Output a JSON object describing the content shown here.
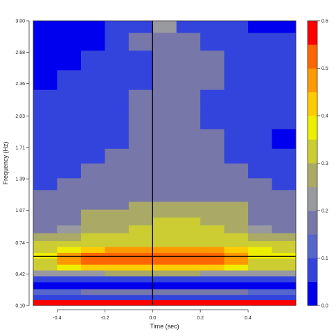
{
  "chart_data": {
    "type": "heatmap",
    "title": "",
    "xlabel": "Time (sec)",
    "ylabel": "Frequency (Hz)",
    "xlim": [
      -0.5,
      0.6
    ],
    "ylim": [
      0.1,
      3.0
    ],
    "x_ticks": [
      -0.4,
      -0.2,
      0.0,
      0.2,
      0.4
    ],
    "x_tick_labels": [
      "-0.4",
      "-0.2",
      "0.0",
      "0.2",
      "0.4"
    ],
    "y_ticks": [
      0.1,
      0.42,
      0.74,
      1.07,
      1.39,
      1.71,
      2.03,
      2.36,
      2.68,
      3.0
    ],
    "y_tick_labels": [
      "0.10",
      "0.42",
      "0.74",
      "1.07",
      "1.39",
      "1.71",
      "2.03",
      "2.36",
      "2.68",
      "3.00"
    ],
    "reference_lines": {
      "vertical_x": 0.0,
      "horizontal_y": 0.6
    },
    "colorbar": {
      "breaks": [
        0.0,
        0.05,
        0.1,
        0.15,
        0.2,
        0.25,
        0.3,
        0.35,
        0.4,
        0.45,
        0.5,
        0.55,
        0.6
      ],
      "colors": [
        "#0000ee",
        "#3344dd",
        "#5566cc",
        "#7777aa",
        "#9999a0",
        "#aaaa66",
        "#cccc33",
        "#eeee00",
        "#ffcc00",
        "#ff9900",
        "#ff6600",
        "#ff0000"
      ],
      "tick_values": [
        0.0,
        0.1,
        0.2,
        0.3,
        0.4,
        0.5,
        0.6
      ],
      "tick_labels": [
        "0.0",
        "0.1",
        "0.2",
        "0.3",
        "0.4",
        "0.5",
        "0.6"
      ]
    },
    "time_columns": [
      -0.45,
      -0.35,
      -0.25,
      -0.15,
      -0.05,
      0.05,
      0.15,
      0.25,
      0.35,
      0.45,
      0.55
    ],
    "frequency_rows": [
      {
        "y0": 0.1,
        "y1": 0.16,
        "values": [
          0.55,
          0.58,
          0.58,
          0.58,
          0.58,
          0.58,
          0.58,
          0.58,
          0.58,
          0.58,
          0.55
        ]
      },
      {
        "y0": 0.16,
        "y1": 0.21,
        "values": [
          0.05,
          0.05,
          0.05,
          0.05,
          0.05,
          0.05,
          0.05,
          0.05,
          0.05,
          0.05,
          0.05
        ]
      },
      {
        "y0": 0.21,
        "y1": 0.27,
        "values": [
          0.12,
          0.12,
          0.15,
          0.15,
          0.15,
          0.15,
          0.15,
          0.15,
          0.15,
          0.12,
          0.12
        ]
      },
      {
        "y0": 0.27,
        "y1": 0.34,
        "values": [
          0.02,
          0.02,
          0.02,
          0.02,
          0.02,
          0.02,
          0.02,
          0.02,
          0.02,
          0.02,
          0.02
        ]
      },
      {
        "y0": 0.34,
        "y1": 0.4,
        "values": [
          0.07,
          0.08,
          0.08,
          0.08,
          0.08,
          0.08,
          0.08,
          0.08,
          0.08,
          0.07,
          0.07
        ]
      },
      {
        "y0": 0.4,
        "y1": 0.46,
        "values": [
          0.22,
          0.23,
          0.23,
          0.25,
          0.28,
          0.28,
          0.25,
          0.23,
          0.23,
          0.22,
          0.22
        ]
      },
      {
        "y0": 0.46,
        "y1": 0.52,
        "values": [
          0.33,
          0.38,
          0.42,
          0.42,
          0.42,
          0.42,
          0.42,
          0.42,
          0.38,
          0.33,
          0.33
        ]
      },
      {
        "y0": 0.52,
        "y1": 0.58,
        "values": [
          0.33,
          0.47,
          0.52,
          0.52,
          0.52,
          0.52,
          0.52,
          0.52,
          0.47,
          0.33,
          0.33
        ]
      },
      {
        "y0": 0.58,
        "y1": 0.64,
        "values": [
          0.35,
          0.47,
          0.52,
          0.52,
          0.52,
          0.52,
          0.52,
          0.52,
          0.47,
          0.38,
          0.35
        ]
      },
      {
        "y0": 0.64,
        "y1": 0.7,
        "values": [
          0.33,
          0.38,
          0.42,
          0.45,
          0.45,
          0.45,
          0.45,
          0.45,
          0.42,
          0.35,
          0.33
        ]
      },
      {
        "y0": 0.7,
        "y1": 0.76,
        "values": [
          0.33,
          0.33,
          0.33,
          0.33,
          0.33,
          0.33,
          0.33,
          0.33,
          0.33,
          0.33,
          0.33
        ]
      },
      {
        "y0": 0.76,
        "y1": 0.84,
        "values": [
          0.27,
          0.28,
          0.33,
          0.33,
          0.33,
          0.33,
          0.33,
          0.33,
          0.33,
          0.28,
          0.27
        ]
      },
      {
        "y0": 0.84,
        "y1": 0.92,
        "values": [
          0.18,
          0.23,
          0.27,
          0.28,
          0.33,
          0.33,
          0.33,
          0.33,
          0.28,
          0.23,
          0.18
        ]
      },
      {
        "y0": 0.92,
        "y1": 1.0,
        "values": [
          0.18,
          0.18,
          0.27,
          0.27,
          0.28,
          0.33,
          0.33,
          0.28,
          0.27,
          0.18,
          0.18
        ]
      },
      {
        "y0": 1.0,
        "y1": 1.08,
        "values": [
          0.18,
          0.18,
          0.27,
          0.27,
          0.27,
          0.28,
          0.28,
          0.27,
          0.27,
          0.18,
          0.18
        ]
      },
      {
        "y0": 1.08,
        "y1": 1.16,
        "values": [
          0.18,
          0.18,
          0.18,
          0.18,
          0.27,
          0.27,
          0.28,
          0.28,
          0.27,
          0.18,
          0.18
        ]
      },
      {
        "y0": 1.16,
        "y1": 1.28,
        "values": [
          0.18,
          0.18,
          0.18,
          0.18,
          0.18,
          0.18,
          0.18,
          0.18,
          0.18,
          0.18,
          0.18
        ]
      },
      {
        "y0": 1.28,
        "y1": 1.4,
        "values": [
          0.08,
          0.18,
          0.18,
          0.18,
          0.18,
          0.18,
          0.18,
          0.18,
          0.18,
          0.18,
          0.08
        ]
      },
      {
        "y0": 1.4,
        "y1": 1.55,
        "values": [
          0.08,
          0.08,
          0.18,
          0.18,
          0.18,
          0.18,
          0.18,
          0.18,
          0.18,
          0.08,
          0.08
        ]
      },
      {
        "y0": 1.55,
        "y1": 1.7,
        "values": [
          0.08,
          0.08,
          0.08,
          0.18,
          0.18,
          0.18,
          0.18,
          0.18,
          0.08,
          0.08,
          0.08
        ]
      },
      {
        "y0": 1.7,
        "y1": 1.9,
        "values": [
          0.08,
          0.08,
          0.08,
          0.08,
          0.18,
          0.18,
          0.18,
          0.18,
          0.08,
          0.08,
          0.02
        ]
      },
      {
        "y0": 1.9,
        "y1": 2.1,
        "values": [
          0.08,
          0.08,
          0.08,
          0.08,
          0.18,
          0.18,
          0.18,
          0.08,
          0.08,
          0.08,
          0.08
        ]
      },
      {
        "y0": 2.1,
        "y1": 2.3,
        "values": [
          0.08,
          0.08,
          0.08,
          0.08,
          0.18,
          0.18,
          0.18,
          0.08,
          0.08,
          0.08,
          0.08
        ]
      },
      {
        "y0": 2.3,
        "y1": 2.5,
        "values": [
          0.02,
          0.08,
          0.08,
          0.08,
          0.08,
          0.18,
          0.18,
          0.18,
          0.08,
          0.08,
          0.08
        ]
      },
      {
        "y0": 2.5,
        "y1": 2.7,
        "values": [
          0.02,
          0.02,
          0.08,
          0.08,
          0.08,
          0.18,
          0.18,
          0.18,
          0.08,
          0.08,
          0.08
        ]
      },
      {
        "y0": 2.7,
        "y1": 2.88,
        "values": [
          0.02,
          0.02,
          0.02,
          0.08,
          0.18,
          0.18,
          0.18,
          0.08,
          0.08,
          0.08,
          0.08
        ]
      },
      {
        "y0": 2.88,
        "y1": 3.0,
        "values": [
          0.02,
          0.02,
          0.02,
          0.08,
          0.08,
          0.23,
          0.08,
          0.08,
          0.08,
          0.02,
          0.02
        ]
      }
    ]
  }
}
